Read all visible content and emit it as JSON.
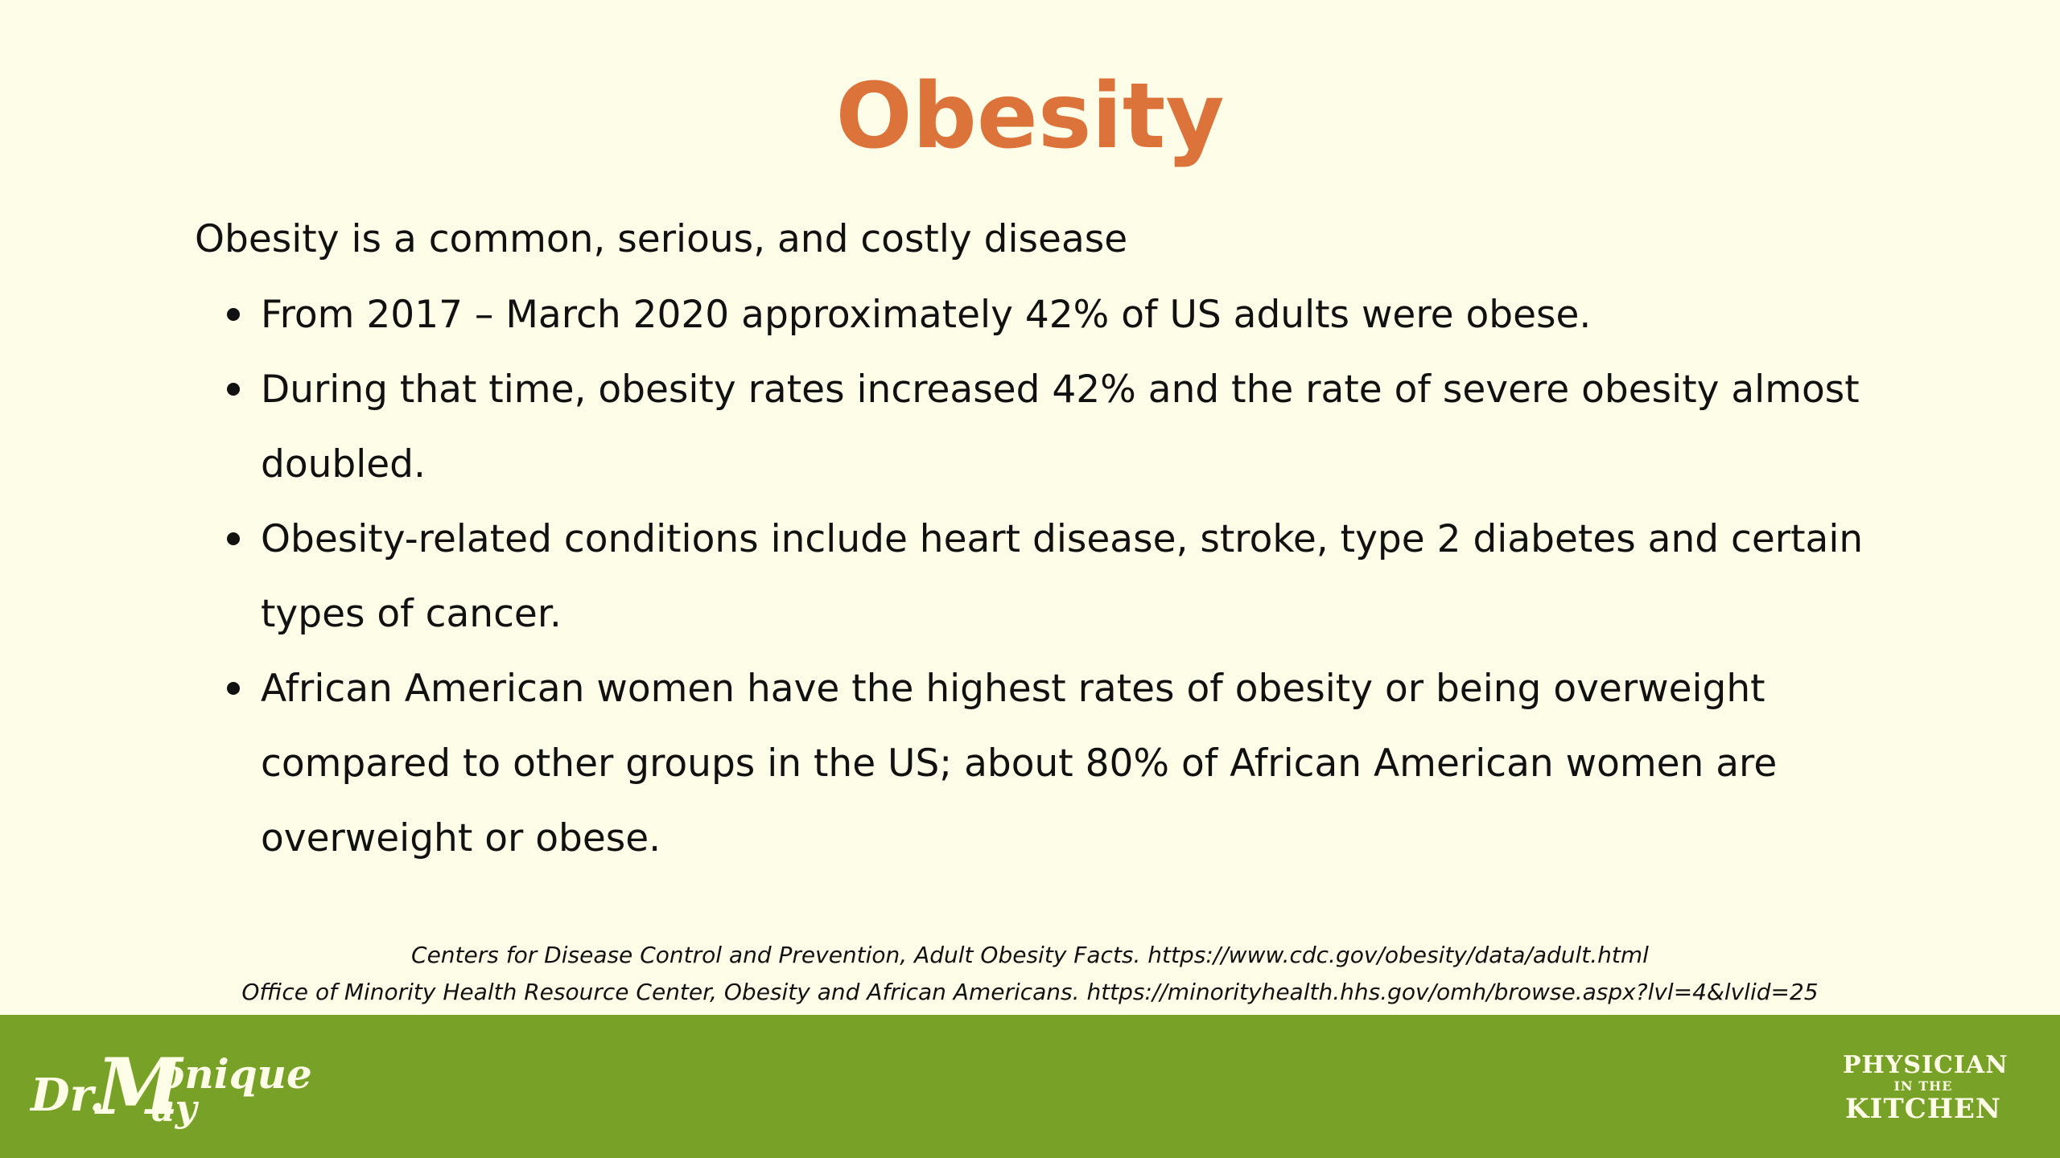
{
  "slide": {
    "title": "Obesity",
    "intro": "Obesity is a common, serious, and costly disease",
    "bullets": [
      "From 2017 – March 2020 approximately 42% of US adults were obese.",
      "During that time, obesity rates increased 42% and the rate of severe obesity almost doubled.",
      "Obesity-related conditions include heart disease, stroke, type 2 diabetes and certain types of cancer.",
      "African American women have the highest rates of obesity or being overweight compared to other groups in the US; about 80% of African American women are overweight or obese."
    ],
    "references": [
      "Centers for Disease Control and Prevention, Adult Obesity Facts. https://www.cdc.gov/obesity/data/adult.html",
      "Office of Minority Health Resource Center, Obesity and African Americans. https://minorityhealth.hhs.gov/omh/browse.aspx?lvl=4&lvlid=25"
    ]
  },
  "footer": {
    "logo_left": {
      "dr": "Dr.",
      "m": "M",
      "onique": "onique",
      "ay": "ay"
    },
    "logo_right": {
      "line1": "PHYSICIAN",
      "line2": "IN THE",
      "line3": "KITCHEN"
    }
  },
  "colors": {
    "background": "#fefee8",
    "title": "#db733b",
    "footer": "#78a128",
    "footer_text": "#fefee8"
  }
}
